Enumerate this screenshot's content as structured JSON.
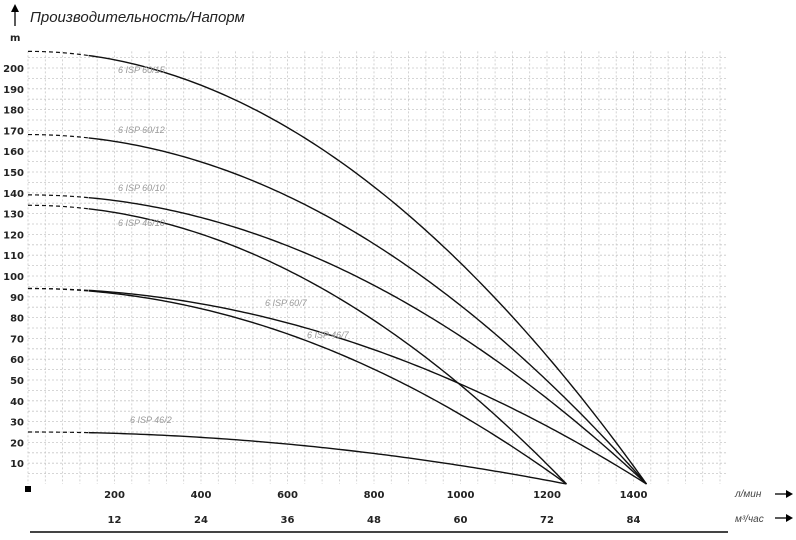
{
  "chart_data": {
    "type": "line",
    "title": "Производительность/Напорм",
    "ylabel": "m",
    "xlabel_primary": "л/мин",
    "xlabel_secondary": "м³/час",
    "xlim": [
      0,
      1620
    ],
    "ylim": [
      0,
      208
    ],
    "grid": true,
    "x_ticks": [
      200,
      400,
      600,
      800,
      1000,
      1200,
      1400
    ],
    "x_ticks_secondary": [
      12,
      24,
      36,
      48,
      60,
      72,
      84
    ],
    "y_ticks": [
      10,
      20,
      30,
      40,
      50,
      60,
      70,
      80,
      90,
      100,
      110,
      120,
      130,
      140,
      150,
      160,
      170,
      180,
      190,
      200
    ],
    "dashed_until_flow": 140,
    "series": [
      {
        "name": "6 ISP 60/15",
        "shutoff_head": 208,
        "max_flow": 1430
      },
      {
        "name": "6 ISP 60/12",
        "shutoff_head": 168,
        "max_flow": 1430
      },
      {
        "name": "6 ISP 60/10",
        "shutoff_head": 139,
        "max_flow": 1430
      },
      {
        "name": "6 ISP 46/10",
        "shutoff_head": 134,
        "max_flow": 1245
      },
      {
        "name": "6 ISP 60/7",
        "shutoff_head": 94,
        "max_flow": 1430
      },
      {
        "name": "6 ISP 46/7",
        "shutoff_head": 94,
        "max_flow": 1245
      },
      {
        "name": "6 ISP 46/2",
        "shutoff_head": 25,
        "max_flow": 1245
      }
    ],
    "line_color": "#111111",
    "grid_color": "#c8c8c8",
    "label_color": "#999999"
  }
}
